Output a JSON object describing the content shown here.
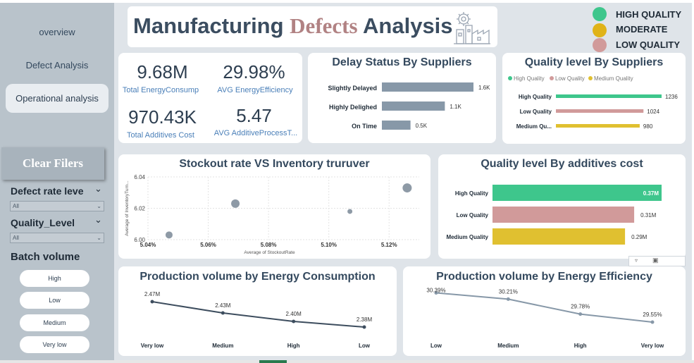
{
  "sidebar": {
    "nav": [
      {
        "label": "overview"
      },
      {
        "label": "Defect Analysis"
      },
      {
        "label": "Operational analysis"
      }
    ],
    "clear_button": "Clear Filers",
    "slicers": [
      {
        "title": "Defect rate leve",
        "value": "All"
      },
      {
        "title": "Quality_Level",
        "value": "All"
      }
    ],
    "batch": {
      "title": "Batch volume",
      "options": [
        "High",
        "Low",
        "Medium",
        "Very low"
      ]
    }
  },
  "header": {
    "title_part1": "Manufacturing ",
    "title_part2": "Defects",
    "title_part3": " Analysis",
    "accent_color": "#b18283"
  },
  "legend": [
    {
      "label": "HIGH QUALITY",
      "color": "#3ec68c"
    },
    {
      "label": "MODERATE",
      "color": "#e0b318"
    },
    {
      "label": "LOW QUALITY",
      "color": "#d19a9a"
    }
  ],
  "kpis": [
    {
      "value": "9.68M",
      "label": "Total EnergyConsump"
    },
    {
      "value": "29.98%",
      "label": "AVG EnergyEfficiency"
    },
    {
      "value": "970.43K",
      "label": "Total Additives Cost"
    },
    {
      "value": "5.47",
      "label": "AVG AdditiveProcessT..."
    }
  ],
  "chart_data": [
    {
      "id": "delay",
      "type": "bar",
      "title": "Delay Status By Suppliers",
      "categories": [
        "Slightly Delayed",
        "Highly Delighed",
        "On Time"
      ],
      "values": [
        1.6,
        1.1,
        0.5
      ],
      "data_labels": [
        "1.6K",
        "1.1K",
        "0.5K"
      ],
      "color": "#8798a8"
    },
    {
      "id": "quality_suppliers",
      "type": "bar",
      "title": "Quality level By Suppliers",
      "legend": [
        "High Quality",
        "Low Quality",
        "Medium Quality"
      ],
      "legend_colors": [
        "#3ec68c",
        "#d19a9a",
        "#e0c030"
      ],
      "categories": [
        "High Quality",
        "Low Quality",
        "Medium Qu..."
      ],
      "values": [
        1236,
        1024,
        980
      ],
      "colors": [
        "#3ec68c",
        "#d19a9a",
        "#e0c030"
      ]
    },
    {
      "id": "scatter",
      "type": "scatter",
      "title": "Stockout rate VS Inventory truruver",
      "xlabel": "Average of StockoutRate",
      "ylabel": "Average of InventoryTurn...",
      "xticks": [
        "5.04%",
        "5.06%",
        "5.08%",
        "5.10%",
        "5.12%"
      ],
      "yticks": [
        "6.04",
        "6.02",
        "6.00"
      ],
      "xlim": [
        5.04,
        5.13
      ],
      "ylim": [
        6.0,
        6.04
      ],
      "points": [
        {
          "x": 5.047,
          "y": 6.003,
          "size": 5
        },
        {
          "x": 5.069,
          "y": 6.023,
          "size": 6
        },
        {
          "x": 5.107,
          "y": 6.018,
          "size": 3.5
        },
        {
          "x": 5.126,
          "y": 6.033,
          "size": 6.5
        }
      ],
      "color": "#8e9aa6"
    },
    {
      "id": "quality_additives",
      "type": "bar",
      "title": "Quality level By additives cost",
      "categories": [
        "High Quality",
        "Low Quality",
        "Medium Quality"
      ],
      "values": [
        0.37,
        0.31,
        0.29
      ],
      "data_labels": [
        "0.37M",
        "0.31M",
        "0.29M"
      ],
      "colors": [
        "#3ec68c",
        "#d19a9a",
        "#e0c030"
      ]
    },
    {
      "id": "prod_energy",
      "type": "line",
      "title": "Production volume by Energy Consumption",
      "categories": [
        "Very low",
        "Medium",
        "High",
        "Low"
      ],
      "values": [
        2.47,
        2.43,
        2.4,
        2.38
      ],
      "data_labels": [
        "2.47M",
        "2.43M",
        "2.40M",
        "2.38M"
      ],
      "color": "#3d4d5e"
    },
    {
      "id": "prod_efficiency",
      "type": "line",
      "title": "Production volume by Energy Efficiency",
      "categories": [
        "Low",
        "Medium",
        "High",
        "Very low"
      ],
      "values": [
        30.39,
        30.21,
        29.78,
        29.55
      ],
      "data_labels": [
        "30.39%",
        "30.21%",
        "29.78%",
        "29.55%"
      ],
      "color": "#8798a8"
    }
  ]
}
